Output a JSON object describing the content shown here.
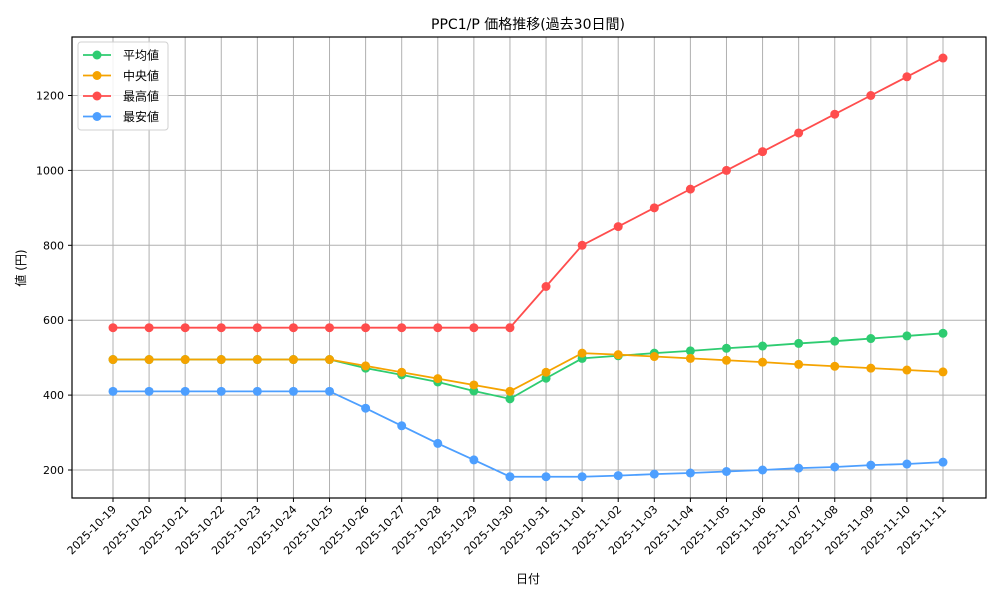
{
  "chart_data": {
    "type": "line",
    "title": "PPC1/P 価格推移(過去30日間)",
    "xlabel": "日付",
    "ylabel": "値 (円)",
    "ylim": [
      125,
      1355
    ],
    "yticks": [
      200,
      400,
      600,
      800,
      1000,
      1200
    ],
    "grid": true,
    "legend_position": "upper left",
    "categories": [
      "2025-10-19",
      "2025-10-20",
      "2025-10-21",
      "2025-10-22",
      "2025-10-23",
      "2025-10-24",
      "2025-10-25",
      "2025-10-26",
      "2025-10-27",
      "2025-10-28",
      "2025-10-29",
      "2025-10-30",
      "2025-10-31",
      "2025-11-01",
      "2025-11-02",
      "2025-11-03",
      "2025-11-04",
      "2025-11-05",
      "2025-11-06",
      "2025-11-07",
      "2025-11-08",
      "2025-11-09",
      "2025-11-10",
      "2025-11-11"
    ],
    "series": [
      {
        "name": "平均値",
        "color": "#2ecc71",
        "values": [
          495,
          495,
          495,
          495,
          495,
          495,
          495,
          472,
          454,
          435,
          411,
          390,
          445,
          498,
          505,
          512,
          518,
          525,
          531,
          538,
          544,
          551,
          558,
          565
        ]
      },
      {
        "name": "中央値",
        "color": "#f5a300",
        "values": [
          495,
          495,
          495,
          495,
          495,
          495,
          495,
          478,
          461,
          444,
          427,
          410,
          461,
          512,
          508,
          503,
          498,
          493,
          488,
          482,
          477,
          472,
          467,
          462
        ]
      },
      {
        "name": "最高値",
        "color": "#ff4d4d",
        "values": [
          580,
          580,
          580,
          580,
          580,
          580,
          580,
          580,
          580,
          580,
          580,
          580,
          690,
          800,
          850,
          900,
          950,
          1000,
          1050,
          1100,
          1150,
          1200,
          1250,
          1300
        ]
      },
      {
        "name": "最安値",
        "color": "#4d9fff",
        "values": [
          410,
          410,
          410,
          410,
          410,
          410,
          410,
          365,
          318,
          271,
          227,
          182,
          182,
          182,
          185,
          189,
          192,
          196,
          200,
          205,
          208,
          213,
          216,
          221
        ]
      }
    ]
  }
}
